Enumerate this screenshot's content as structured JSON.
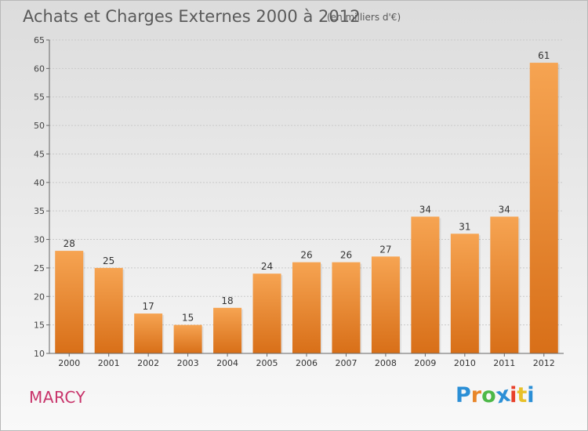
{
  "title": "Achats et Charges Externes 2000 à 2012",
  "subtitle": "(en milliers d'€)",
  "place": "MARCY",
  "logo": {
    "letters": [
      "P",
      "r",
      "o",
      "x",
      "i",
      "t",
      "i"
    ],
    "colors": [
      "#2b8fd6",
      "#e8862a",
      "#4db848",
      "#2b8fd6",
      "#e8402a",
      "#e8c12a",
      "#2b8fd6"
    ]
  },
  "colors": {
    "bar_top": "#f6a452",
    "bar_bottom": "#d86f18",
    "axis": "#666666",
    "grid": "#c9c9c9"
  },
  "chart_data": {
    "type": "bar",
    "title": "Achats et Charges Externes 2000 à 2012",
    "subtitle": "(en milliers d'€)",
    "xlabel": "",
    "ylabel": "",
    "categories": [
      "2000",
      "2001",
      "2002",
      "2003",
      "2004",
      "2005",
      "2006",
      "2007",
      "2008",
      "2009",
      "2010",
      "2011",
      "2012"
    ],
    "values": [
      28,
      25,
      17,
      15,
      18,
      24,
      26,
      26,
      27,
      34,
      31,
      34,
      61
    ],
    "ylim": [
      10,
      65
    ],
    "yticks": [
      10,
      15,
      20,
      25,
      30,
      35,
      40,
      45,
      50,
      55,
      60,
      65
    ],
    "grid": true
  }
}
